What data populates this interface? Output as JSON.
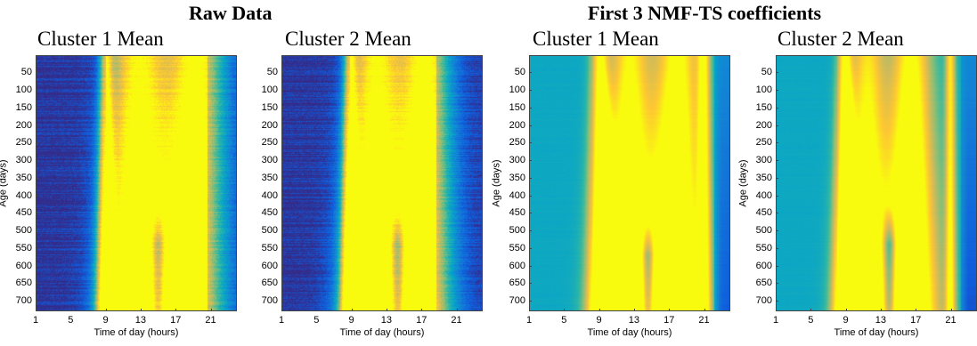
{
  "group_titles": {
    "raw": "Raw Data",
    "nmf": "First 3 NMF-TS coefficients"
  },
  "colormap": "parula",
  "colormap_stops": [
    "#352a87",
    "#0f5cdd",
    "#1481d6",
    "#06a4ca",
    "#2eb7a4",
    "#87bf77",
    "#d1bb59",
    "#fec832",
    "#f9fb0e"
  ],
  "chart_data": [
    {
      "type": "heatmap",
      "title": "Cluster 1 Mean",
      "group": "Raw Data",
      "xlabel": "Time of day (hours)",
      "ylabel": "Age (days)",
      "xticks": [
        1,
        5,
        9,
        13,
        17,
        21
      ],
      "yticks": [
        50,
        100,
        150,
        200,
        250,
        300,
        350,
        400,
        450,
        500,
        550,
        600,
        650,
        700
      ],
      "xlim": [
        1,
        24
      ],
      "ylim": [
        1,
        730
      ],
      "noise": 0.1,
      "shapes": [
        {
          "c": 9.0,
          "w": 0.5,
          "a": 0.55,
          "dc": 0.0,
          "dw": 0.3,
          "da": 0.4
        },
        {
          "c": 12.8,
          "w": 2.3,
          "a": 0.75,
          "dc": -0.5,
          "dw": 0.4,
          "da": 0.2
        },
        {
          "c": 19.5,
          "w": 2.3,
          "a": 0.8,
          "dc": -1.0,
          "dw": 0.5,
          "da": 0.2
        }
      ],
      "notch": {
        "c": 15.0,
        "w": 0.6,
        "a": 0.55,
        "ystart": 420
      },
      "base": 0.05
    },
    {
      "type": "heatmap",
      "title": "Cluster 2 Mean",
      "group": "Raw Data",
      "xlabel": "Time of day (hours)",
      "ylabel": "",
      "xticks": [
        1,
        5,
        9,
        13,
        17,
        21
      ],
      "yticks": [
        50,
        100,
        150,
        200,
        250,
        300,
        350,
        400,
        450,
        500,
        550,
        600,
        650,
        700
      ],
      "xlim": [
        1,
        24
      ],
      "ylim": [
        1,
        730
      ],
      "noise": 0.1,
      "shapes": [
        {
          "c": 8.8,
          "w": 0.5,
          "a": 0.55,
          "dc": 0.0,
          "dw": 0.3,
          "da": 0.4
        },
        {
          "c": 11.8,
          "w": 2.0,
          "a": 0.75,
          "dc": -0.5,
          "dw": 0.5,
          "da": 0.2
        },
        {
          "c": 17.5,
          "w": 2.0,
          "a": 0.8,
          "dc": -0.5,
          "dw": 0.5,
          "da": 0.2
        }
      ],
      "notch": {
        "c": 14.3,
        "w": 0.6,
        "a": 0.6,
        "ystart": 420
      },
      "base": 0.05
    },
    {
      "type": "heatmap",
      "title": "Cluster 1 Mean",
      "group": "First 3 NMF-TS coefficients",
      "xlabel": "Time of day (hours)",
      "ylabel": "Age (days)",
      "xticks": [
        1,
        5,
        9,
        13,
        17,
        21
      ],
      "yticks": [
        50,
        100,
        150,
        200,
        250,
        300,
        350,
        400,
        450,
        500,
        550,
        600,
        650,
        700
      ],
      "xlim": [
        1,
        24
      ],
      "ylim": [
        1,
        730
      ],
      "noise": 0.015,
      "shapes": [
        {
          "c": 9.0,
          "w": 0.7,
          "a": 0.6,
          "dc": 0.6,
          "dw": 0.6,
          "da": 0.35
        },
        {
          "c": 12.5,
          "w": 1.6,
          "a": 0.55,
          "dc": -0.5,
          "dw": 0.6,
          "da": 0.35
        },
        {
          "c": 18.0,
          "w": 1.8,
          "a": 0.6,
          "dc": -0.6,
          "dw": 0.6,
          "da": 0.35
        },
        {
          "c": 21.0,
          "w": 0.5,
          "a": 0.5,
          "dc": 0.0,
          "dw": 0.0,
          "da": 0.0
        }
      ],
      "notch": {
        "c": 14.6,
        "w": 0.55,
        "a": 0.6,
        "ystart": 450
      },
      "base": 0.35
    },
    {
      "type": "heatmap",
      "title": "Cluster 2 Mean",
      "group": "First 3 NMF-TS coefficients",
      "xlabel": "Time of day (hours)",
      "ylabel": "Age (days)",
      "xticks": [
        1,
        5,
        9,
        13,
        17,
        21
      ],
      "yticks": [
        50,
        100,
        150,
        200,
        250,
        300,
        350,
        400,
        450,
        500,
        550,
        600,
        650,
        700
      ],
      "xlim": [
        1,
        24
      ],
      "ylim": [
        1,
        730
      ],
      "noise": 0.015,
      "shapes": [
        {
          "c": 8.8,
          "w": 0.6,
          "a": 0.6,
          "dc": 0.3,
          "dw": 0.5,
          "da": 0.3
        },
        {
          "c": 11.5,
          "w": 1.4,
          "a": 0.5,
          "dc": -0.4,
          "dw": 0.5,
          "da": 0.3
        },
        {
          "c": 16.5,
          "w": 1.6,
          "a": 0.6,
          "dc": -0.3,
          "dw": 0.6,
          "da": 0.35
        },
        {
          "c": 21.0,
          "w": 0.4,
          "a": 0.5,
          "dc": 0.0,
          "dw": 0.0,
          "da": 0.0
        }
      ],
      "notch": {
        "c": 14.0,
        "w": 0.55,
        "a": 0.6,
        "ystart": 420
      },
      "base": 0.35
    }
  ]
}
